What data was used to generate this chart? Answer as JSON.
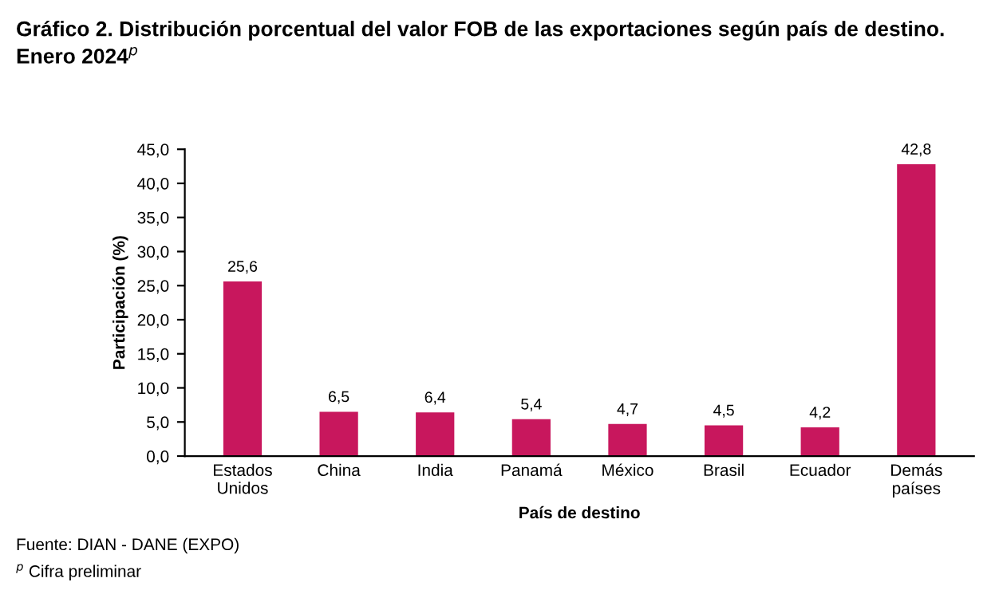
{
  "chart_data": {
    "type": "bar",
    "title": "Gráfico 2. Distribución porcentual del valor FOB de las exportaciones según país de destino.\nEnero 2024$^{p}$",
    "xlabel": "País de destino",
    "ylabel": "Participación (%)",
    "categories": [
      "Estados\nUnidos",
      "China",
      "India",
      "Panamá",
      "México",
      "Brasil",
      "Ecuador",
      "Demás\npaíses"
    ],
    "values": [
      25.6,
      6.5,
      6.4,
      5.4,
      4.7,
      4.5,
      4.2,
      42.8
    ],
    "value_labels": [
      "25,6",
      "6,5",
      "6,4",
      "5,4",
      "4,7",
      "4,5",
      "4,2",
      "42,8"
    ],
    "color": "#c8175d",
    "ylim": [
      0,
      45
    ],
    "yticks": [
      {
        "value": 0,
        "label": "0,0"
      },
      {
        "value": 5,
        "label": "5,0"
      },
      {
        "value": 10,
        "label": "10,0"
      },
      {
        "value": 15,
        "label": "15,0"
      },
      {
        "value": 20,
        "label": "20,0"
      },
      {
        "value": 25,
        "label": "25,0"
      },
      {
        "value": 30,
        "label": "30,0"
      },
      {
        "value": 35,
        "label": "35,0"
      },
      {
        "value": 40,
        "label": "40,0"
      },
      {
        "value": 45,
        "label": "45,0"
      }
    ],
    "grid": false,
    "legend": false,
    "annotations": [
      "Fuente: DIAN - DANE (EXPO)",
      "$^{p}$ Cifra preliminar"
    ]
  }
}
